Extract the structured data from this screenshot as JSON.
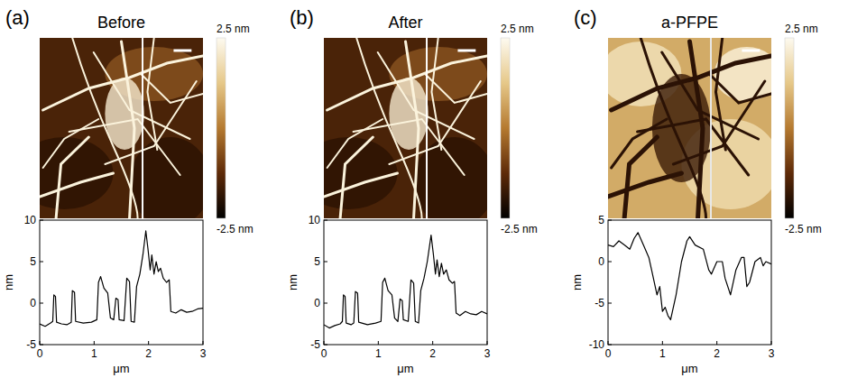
{
  "chart_data": [
    {
      "type": "line",
      "panel_label": "(a)",
      "title": "Before",
      "x_label": "μm",
      "y_label": "nm",
      "xlim": [
        0,
        3
      ],
      "xticks": [
        0,
        1,
        2,
        3
      ],
      "ylim": [
        -5,
        10
      ],
      "yticks": [
        -5,
        0,
        5,
        10
      ],
      "color": "#000000",
      "colorbar_range": [
        -2.5,
        2.5
      ],
      "colorbar_ticks": [
        {
          "value": 2.5,
          "label": "2.5 nm"
        },
        {
          "value": -2.5,
          "label": "-2.5 nm"
        }
      ],
      "x": [
        0,
        0.1,
        0.2,
        0.24,
        0.26,
        0.29,
        0.31,
        0.4,
        0.5,
        0.58,
        0.6,
        0.64,
        0.66,
        0.8,
        0.95,
        1.05,
        1.08,
        1.12,
        1.18,
        1.25,
        1.3,
        1.36,
        1.4,
        1.44,
        1.46,
        1.55,
        1.6,
        1.65,
        1.68,
        1.74,
        1.78,
        1.84,
        1.9,
        1.95,
        1.99,
        2.03,
        2.06,
        2.1,
        2.14,
        2.18,
        2.22,
        2.27,
        2.33,
        2.38,
        2.41,
        2.5,
        2.6,
        2.7,
        2.8,
        2.9,
        3.0
      ],
      "values": [
        -2.5,
        -2.8,
        -2.4,
        -2.2,
        1.0,
        0.8,
        -2.3,
        -2.5,
        -2.6,
        -2.3,
        1.5,
        1.3,
        -2.2,
        -2.4,
        -2.3,
        -2.0,
        2.5,
        3.2,
        1.8,
        1.2,
        -1.8,
        -2.0,
        0.6,
        0.4,
        -2.0,
        -2.1,
        3.0,
        2.6,
        -2.2,
        -2.3,
        2.0,
        3.5,
        6.0,
        8.7,
        6.5,
        4.0,
        5.8,
        3.5,
        5.0,
        3.8,
        4.2,
        3.0,
        2.5,
        2.8,
        -1.0,
        -1.2,
        -0.8,
        -1.1,
        -1.0,
        -0.7,
        -0.6
      ]
    },
    {
      "type": "line",
      "panel_label": "(b)",
      "title": "After",
      "x_label": "μm",
      "y_label": "nm",
      "xlim": [
        0,
        3
      ],
      "xticks": [
        0,
        1,
        2,
        3
      ],
      "ylim": [
        -5,
        10
      ],
      "yticks": [
        -5,
        0,
        5,
        10
      ],
      "color": "#000000",
      "colorbar_range": [
        -2.5,
        2.5
      ],
      "colorbar_ticks": [
        {
          "value": 2.5,
          "label": "2.5 nm"
        },
        {
          "value": -2.5,
          "label": "-2.5 nm"
        }
      ],
      "x": [
        0,
        0.1,
        0.2,
        0.3,
        0.34,
        0.36,
        0.39,
        0.41,
        0.5,
        0.55,
        0.58,
        0.62,
        0.64,
        0.8,
        0.95,
        1.05,
        1.08,
        1.12,
        1.18,
        1.25,
        1.3,
        1.36,
        1.4,
        1.44,
        1.46,
        1.55,
        1.6,
        1.65,
        1.68,
        1.74,
        1.78,
        1.84,
        1.9,
        1.97,
        2.01,
        2.05,
        2.08,
        2.12,
        2.16,
        2.2,
        2.25,
        2.3,
        2.36,
        2.4,
        2.43,
        2.5,
        2.6,
        2.7,
        2.8,
        2.9,
        3.0
      ],
      "values": [
        -2.6,
        -3.0,
        -2.7,
        -2.5,
        -2.2,
        1.0,
        0.8,
        -2.4,
        -2.6,
        -2.4,
        1.4,
        1.2,
        -2.3,
        -2.6,
        -2.4,
        -2.2,
        2.5,
        3.0,
        1.5,
        1.0,
        -1.8,
        -2.2,
        0.5,
        0.3,
        -2.0,
        -2.2,
        2.8,
        2.4,
        -2.2,
        -2.4,
        1.5,
        3.0,
        5.0,
        8.2,
        6.0,
        3.5,
        5.2,
        3.2,
        4.8,
        3.5,
        4.0,
        2.8,
        2.4,
        2.6,
        -1.2,
        -1.5,
        -1.0,
        -1.3,
        -1.4,
        -1.0,
        -1.3
      ]
    },
    {
      "type": "line",
      "panel_label": "(c)",
      "title": "a-PFPE",
      "x_label": "μm",
      "y_label": "nm",
      "xlim": [
        0,
        3
      ],
      "xticks": [
        0,
        1,
        2,
        3
      ],
      "ylim": [
        -10,
        5
      ],
      "yticks": [
        -10,
        -5,
        0,
        5
      ],
      "color": "#000000",
      "colorbar_range": [
        -2.5,
        2.5
      ],
      "colorbar_ticks": [
        {
          "value": 2.5,
          "label": "2.5 nm"
        },
        {
          "value": -2.5,
          "label": "-2.5 nm"
        }
      ],
      "x": [
        0,
        0.1,
        0.2,
        0.3,
        0.4,
        0.48,
        0.55,
        0.65,
        0.75,
        0.8,
        0.9,
        0.95,
        1.0,
        1.05,
        1.1,
        1.15,
        1.25,
        1.35,
        1.45,
        1.5,
        1.6,
        1.75,
        1.85,
        1.9,
        2.0,
        2.1,
        2.15,
        2.25,
        2.35,
        2.45,
        2.5,
        2.55,
        2.6,
        2.7,
        2.8,
        2.85,
        2.9,
        3.0
      ],
      "values": [
        2.0,
        1.8,
        2.5,
        2.0,
        1.5,
        2.8,
        3.5,
        2.0,
        0.5,
        -1.0,
        -4.0,
        -3.0,
        -6.0,
        -5.5,
        -6.5,
        -7.0,
        -4.0,
        0.0,
        2.5,
        3.0,
        2.0,
        1.5,
        -1.0,
        -1.5,
        0.0,
        0.0,
        -2.0,
        -4.0,
        -1.0,
        0.5,
        0.5,
        -3.0,
        -2.5,
        0.0,
        0.5,
        -0.5,
        0.0,
        -0.3
      ]
    }
  ]
}
